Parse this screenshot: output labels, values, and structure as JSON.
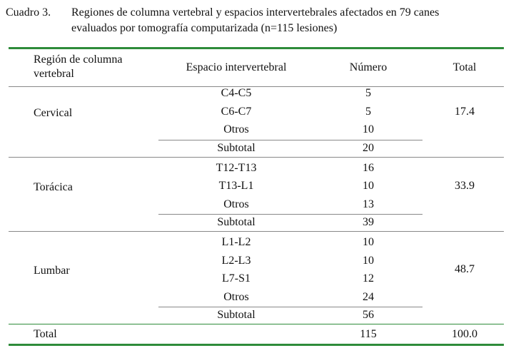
{
  "caption": {
    "label": "Cuadro 3.",
    "lines": [
      "Regiones de columna vertebral y espacios intervertebrales afectados en 79 canes",
      "evaluados por tomografía computarizada (n=115 lesiones)"
    ]
  },
  "table": {
    "header": [
      "Región de columna vertebral",
      "Espacio intervertebral",
      "Número",
      "Total"
    ],
    "groups": [
      {
        "region": "Cervical",
        "rows": [
          [
            "C4-C5",
            "5"
          ],
          [
            "C6-C7",
            "5"
          ],
          [
            "Otros",
            "10"
          ]
        ],
        "subtotal": [
          "Subtotal",
          "20"
        ],
        "total": "17.4"
      },
      {
        "region": "Torácica",
        "rows": [
          [
            "T12-T13",
            "16"
          ],
          [
            "T13-L1",
            "10"
          ],
          [
            "Otros",
            "13"
          ]
        ],
        "subtotal": [
          "Subtotal",
          "39"
        ],
        "total": "33.9"
      },
      {
        "region": "Lumbar",
        "rows": [
          [
            "L1-L2",
            "10"
          ],
          [
            "L2-L3",
            "10"
          ],
          [
            "L7-S1",
            "12"
          ],
          [
            "Otros",
            "24"
          ]
        ],
        "subtotal": [
          "Subtotal",
          "56"
        ],
        "total": "48.7"
      }
    ],
    "total": [
      "Total",
      "115",
      "100.0"
    ]
  }
}
